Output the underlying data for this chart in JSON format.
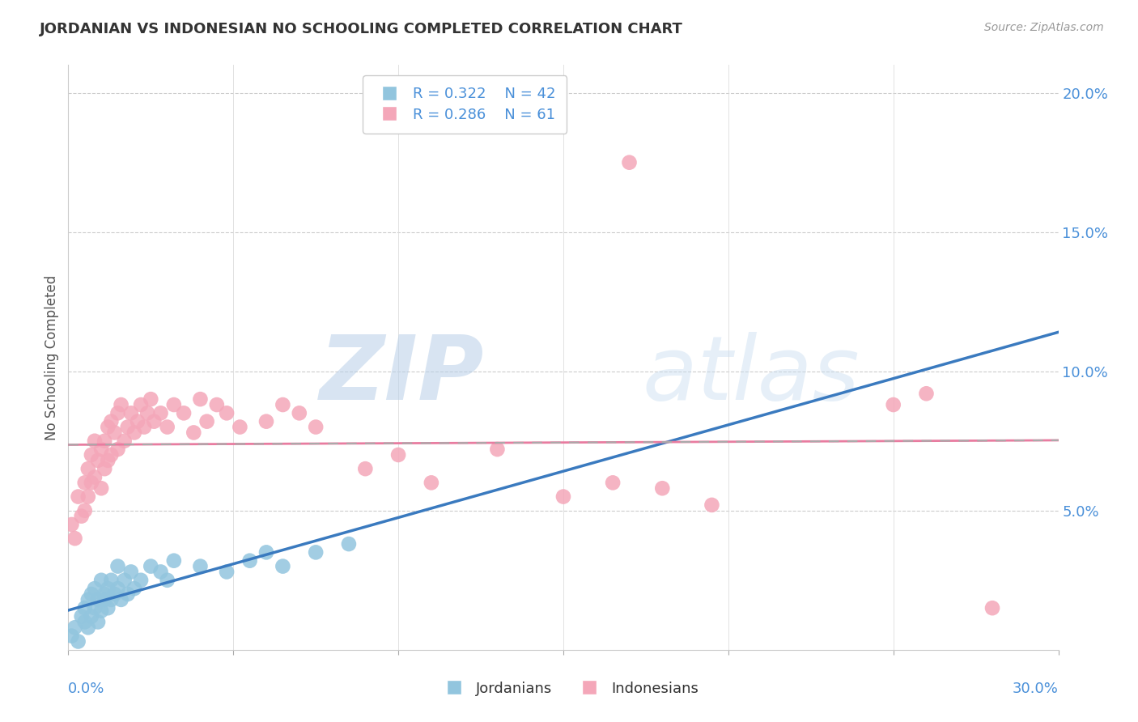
{
  "title": "JORDANIAN VS INDONESIAN NO SCHOOLING COMPLETED CORRELATION CHART",
  "source_text": "Source: ZipAtlas.com",
  "ylabel": "No Schooling Completed",
  "xlim": [
    0.0,
    0.3
  ],
  "ylim": [
    0.0,
    0.21
  ],
  "yticks": [
    0.05,
    0.1,
    0.15,
    0.2
  ],
  "ytick_labels": [
    "5.0%",
    "10.0%",
    "15.0%",
    "20.0%"
  ],
  "legend_blue_r": "R = 0.322",
  "legend_blue_n": "N = 42",
  "legend_pink_r": "R = 0.286",
  "legend_pink_n": "N = 61",
  "blue_color": "#92c5de",
  "pink_color": "#f4a7b9",
  "blue_line_color": "#3a7abf",
  "pink_line_color": "#e87ca0",
  "tick_label_color": "#4a90d9",
  "watermark_color": "#ddeeff",
  "jordanians_x": [
    0.001,
    0.002,
    0.003,
    0.004,
    0.005,
    0.005,
    0.006,
    0.006,
    0.007,
    0.007,
    0.008,
    0.008,
    0.009,
    0.009,
    0.01,
    0.01,
    0.011,
    0.011,
    0.012,
    0.012,
    0.013,
    0.013,
    0.014,
    0.015,
    0.015,
    0.016,
    0.017,
    0.018,
    0.019,
    0.02,
    0.022,
    0.025,
    0.028,
    0.03,
    0.032,
    0.04,
    0.048,
    0.055,
    0.06,
    0.065,
    0.075,
    0.085
  ],
  "jordanians_y": [
    0.005,
    0.008,
    0.003,
    0.012,
    0.01,
    0.015,
    0.008,
    0.018,
    0.012,
    0.02,
    0.015,
    0.022,
    0.01,
    0.018,
    0.014,
    0.025,
    0.018,
    0.02,
    0.015,
    0.022,
    0.018,
    0.025,
    0.02,
    0.022,
    0.03,
    0.018,
    0.025,
    0.02,
    0.028,
    0.022,
    0.025,
    0.03,
    0.028,
    0.025,
    0.032,
    0.03,
    0.028,
    0.032,
    0.035,
    0.03,
    0.035,
    0.038
  ],
  "indonesians_x": [
    0.001,
    0.002,
    0.003,
    0.004,
    0.005,
    0.005,
    0.006,
    0.006,
    0.007,
    0.007,
    0.008,
    0.008,
    0.009,
    0.01,
    0.01,
    0.011,
    0.011,
    0.012,
    0.012,
    0.013,
    0.013,
    0.014,
    0.015,
    0.015,
    0.016,
    0.017,
    0.018,
    0.019,
    0.02,
    0.021,
    0.022,
    0.023,
    0.024,
    0.025,
    0.026,
    0.028,
    0.03,
    0.032,
    0.035,
    0.038,
    0.04,
    0.042,
    0.045,
    0.048,
    0.052,
    0.06,
    0.065,
    0.07,
    0.075,
    0.09,
    0.1,
    0.11,
    0.13,
    0.15,
    0.165,
    0.17,
    0.18,
    0.195,
    0.25,
    0.26,
    0.28
  ],
  "indonesians_y": [
    0.045,
    0.04,
    0.055,
    0.048,
    0.06,
    0.05,
    0.065,
    0.055,
    0.07,
    0.06,
    0.075,
    0.062,
    0.068,
    0.072,
    0.058,
    0.075,
    0.065,
    0.08,
    0.068,
    0.082,
    0.07,
    0.078,
    0.085,
    0.072,
    0.088,
    0.075,
    0.08,
    0.085,
    0.078,
    0.082,
    0.088,
    0.08,
    0.085,
    0.09,
    0.082,
    0.085,
    0.08,
    0.088,
    0.085,
    0.078,
    0.09,
    0.082,
    0.088,
    0.085,
    0.08,
    0.082,
    0.088,
    0.085,
    0.08,
    0.065,
    0.07,
    0.06,
    0.072,
    0.055,
    0.06,
    0.175,
    0.058,
    0.052,
    0.088,
    0.092,
    0.015
  ]
}
